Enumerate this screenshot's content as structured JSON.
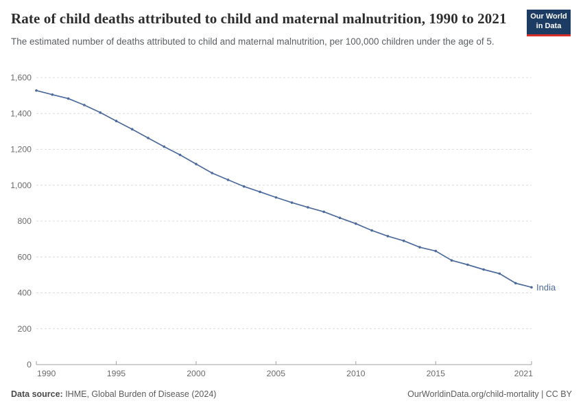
{
  "header": {
    "logo": {
      "line1": "Our World",
      "line2": "in Data",
      "bg_color": "#1d3c63",
      "accent_color": "#dc2e29"
    }
  },
  "chart_data": {
    "type": "line",
    "title": "Rate of child deaths attributed to child and maternal malnutrition, 1990 to 2021",
    "subtitle": "The estimated number of deaths attributed to child and maternal malnutrition, per 100,000 children under the age of 5.",
    "xlabel": "",
    "ylabel": "",
    "x": [
      1990,
      1991,
      1992,
      1993,
      1994,
      1995,
      1996,
      1997,
      1998,
      1999,
      2000,
      2001,
      2002,
      2003,
      2004,
      2005,
      2006,
      2007,
      2008,
      2009,
      2010,
      2011,
      2012,
      2013,
      2014,
      2015,
      2016,
      2017,
      2018,
      2019,
      2020,
      2021
    ],
    "series": [
      {
        "name": "India",
        "color": "#4c6a9c",
        "values": [
          1528,
          1505,
          1483,
          1447,
          1405,
          1358,
          1312,
          1263,
          1215,
          1169,
          1118,
          1068,
          1030,
          993,
          963,
          932,
          903,
          877,
          852,
          818,
          786,
          748,
          716,
          690,
          654,
          633,
          581,
          557,
          530,
          507,
          454,
          431
        ]
      }
    ],
    "ylim": [
      0,
      1600
    ],
    "yticks": [
      0,
      200,
      400,
      600,
      800,
      1000,
      1200,
      1400,
      1600
    ],
    "xticks": [
      1990,
      1995,
      2000,
      2005,
      2010,
      2015,
      2021
    ],
    "grid": "dashed-horizontal",
    "legend_position": "end-of-line-label",
    "colors": {
      "gridline": "#dcdcdc",
      "axis_line": "#a0a0a0",
      "tick_label": "#6b6b6b"
    }
  },
  "footer": {
    "data_source_label": "Data source:",
    "data_source_value": " IHME, Global Burden of Disease (2024)",
    "link": "OurWorldinData.org/child-mortality | CC BY"
  }
}
